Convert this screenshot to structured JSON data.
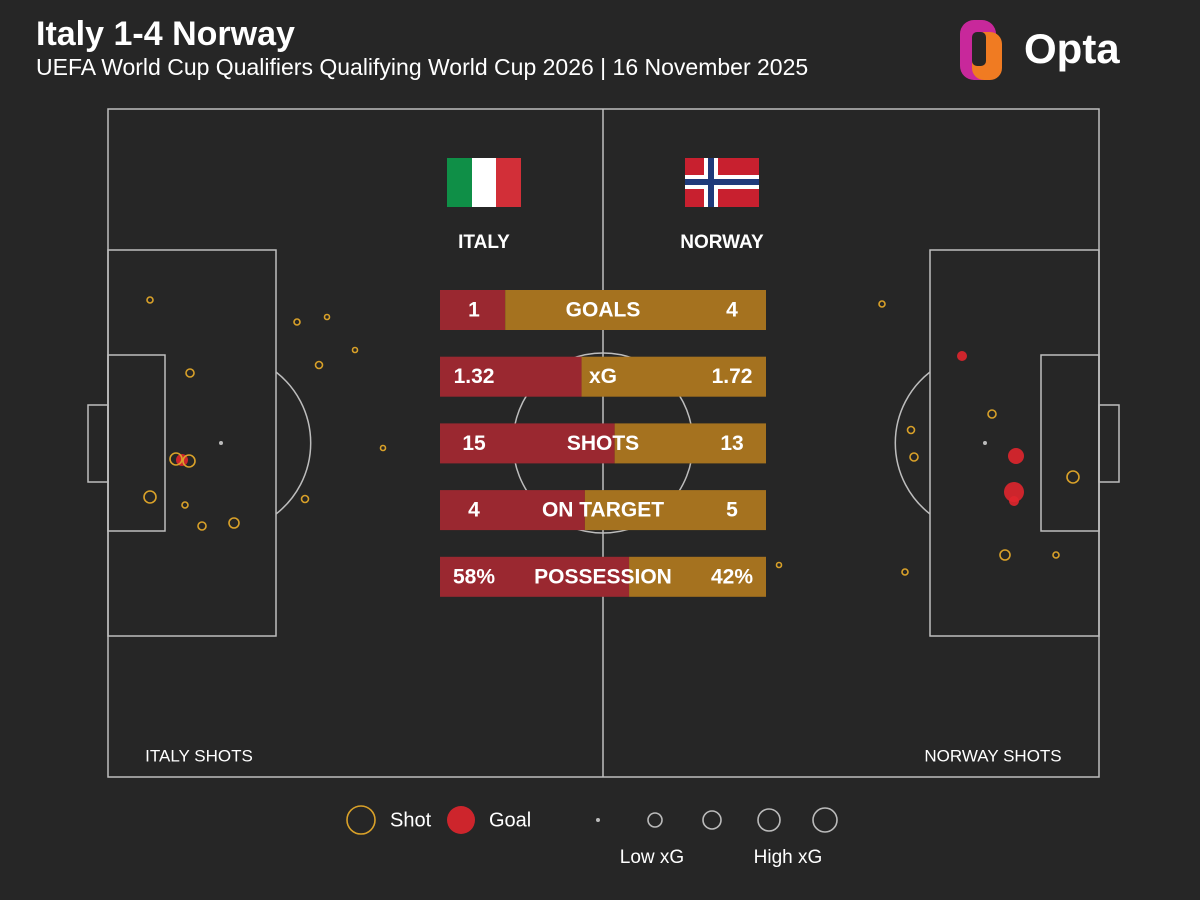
{
  "header": {
    "title": "Italy 1-4 Norway",
    "subtitle": "UEFA World Cup Qualifiers Qualifying World Cup 2026 | 16 November 2025"
  },
  "logo": "Opta",
  "teams": {
    "home": "ITALY",
    "away": "NORWAY"
  },
  "stats": [
    {
      "label": "GOALS",
      "home": 1,
      "away": 4
    },
    {
      "label": "xG",
      "home": 1.32,
      "away": 1.72
    },
    {
      "label": "SHOTS",
      "home": 15,
      "away": 13
    },
    {
      "label": "ON TARGET",
      "home": 4,
      "away": 5
    },
    {
      "label": "POSSESSION",
      "home": {
        "value": 58,
        "label": "58%"
      },
      "away": {
        "value": 42,
        "label": "42%"
      }
    }
  ],
  "pitch_labels": {
    "home": "ITALY SHOTS",
    "away": "NORWAY SHOTS"
  },
  "legend": {
    "shot": "Shot",
    "goal": "Goal",
    "low_xg": "Low xG",
    "high_xg": "High xG"
  }
}
